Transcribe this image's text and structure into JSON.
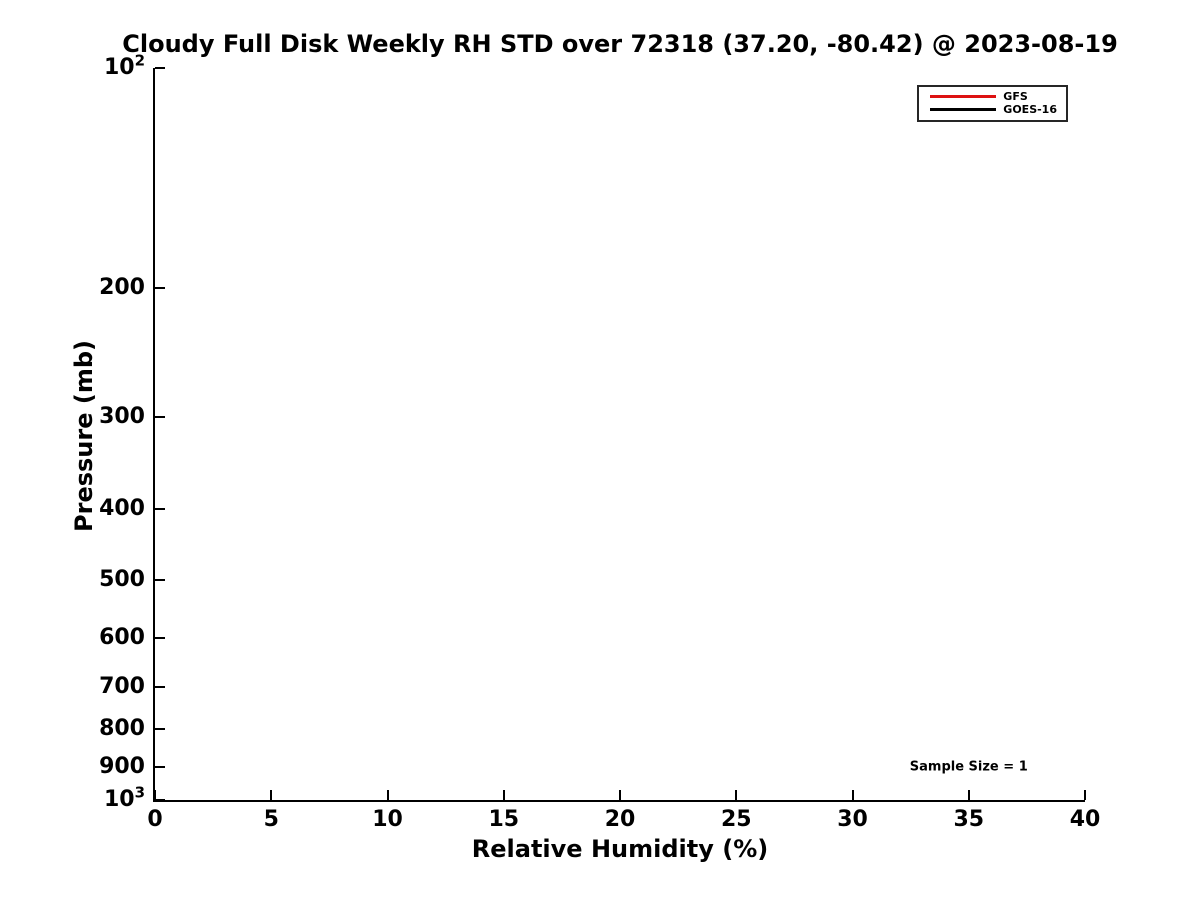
{
  "chart_data": {
    "type": "line",
    "title": "Cloudy Full Disk Weekly RH STD over 72318 (37.20, -80.42) @ 2023-08-19",
    "xlabel": "Relative Humidity (%)",
    "ylabel": "Pressure (mb)",
    "xlim": [
      0,
      40
    ],
    "ylim": [
      100,
      1000
    ],
    "y_scale": "log10",
    "y_axis_inverted": true,
    "grid": false,
    "x_ticks": [
      0,
      5,
      10,
      15,
      20,
      25,
      30,
      35,
      40
    ],
    "y_ticks": [
      100,
      200,
      300,
      400,
      500,
      600,
      700,
      800,
      900,
      1000
    ],
    "y_tick_labels": [
      "10^2",
      "200",
      "300",
      "400",
      "500",
      "600",
      "700",
      "800",
      "900",
      "10^3"
    ],
    "axis_color": "#000000",
    "legend": {
      "position": "top-right",
      "border_color": "#262626"
    },
    "series": [
      {
        "name": "GFS",
        "color": "#dd1111",
        "line_width": 3.5,
        "x": [],
        "y": []
      },
      {
        "name": "GOES-16",
        "color": "#000000",
        "line_width": 3.5,
        "x": [],
        "y": []
      }
    ],
    "annotations": [
      {
        "text": "Sample Size = 1",
        "x": 35,
        "y": 900
      }
    ]
  }
}
